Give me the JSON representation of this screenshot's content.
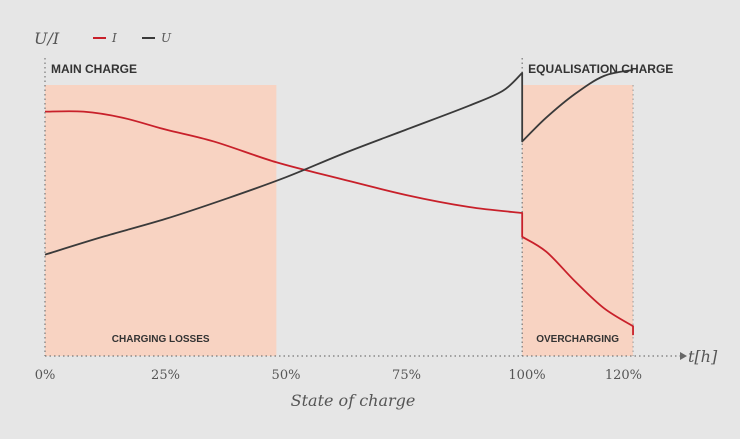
{
  "chart_data": {
    "type": "line",
    "y_axis_label": "U/I",
    "x_axis_unit_label": "t[h]",
    "xlabel": "State of charge",
    "x_ticks": [
      {
        "value": 0,
        "label": "0%"
      },
      {
        "value": 25,
        "label": "25%"
      },
      {
        "value": 50,
        "label": "50%"
      },
      {
        "value": 75,
        "label": "75%"
      },
      {
        "value": 100,
        "label": "100%"
      },
      {
        "value": 120,
        "label": "120%"
      }
    ],
    "xlim": [
      0,
      130
    ],
    "ylim": [
      0,
      1
    ],
    "grid": false,
    "legend": {
      "placement": "top-left",
      "entries": [
        {
          "name": "I",
          "color": "#c8202a"
        },
        {
          "name": "U",
          "color": "#3a3a3a"
        }
      ]
    },
    "series": [
      {
        "name": "I",
        "color": "#c8202a",
        "points": [
          [
            0,
            0.82
          ],
          [
            8,
            0.82
          ],
          [
            16,
            0.8
          ],
          [
            25,
            0.76
          ],
          [
            35,
            0.72
          ],
          [
            48,
            0.65
          ],
          [
            60,
            0.6
          ],
          [
            75,
            0.54
          ],
          [
            88,
            0.5
          ],
          [
            99,
            0.48
          ],
          [
            99,
            0.4
          ],
          [
            104,
            0.35
          ],
          [
            110,
            0.25
          ],
          [
            116,
            0.16
          ],
          [
            122,
            0.1
          ],
          [
            122,
            0.07
          ]
        ]
      },
      {
        "name": "U",
        "color": "#3a3a3a",
        "points": [
          [
            0,
            0.34
          ],
          [
            12,
            0.4
          ],
          [
            25,
            0.46
          ],
          [
            38,
            0.53
          ],
          [
            50,
            0.6
          ],
          [
            62,
            0.68
          ],
          [
            75,
            0.76
          ],
          [
            88,
            0.84
          ],
          [
            95,
            0.89
          ],
          [
            99,
            0.95
          ],
          [
            99,
            0.72
          ],
          [
            104,
            0.8
          ],
          [
            110,
            0.88
          ],
          [
            116,
            0.94
          ],
          [
            122,
            0.96
          ]
        ]
      }
    ],
    "regions": [
      {
        "name": "charging-losses",
        "label": "CHARGING LOSSES",
        "x_start": 0,
        "x_end": 48,
        "color": "#f8d3c2"
      },
      {
        "name": "overcharging",
        "label": "OVERCHARGING",
        "x_start": 99,
        "x_end": 122,
        "color": "#f8d3c2"
      }
    ],
    "phase_labels": [
      {
        "name": "main-charge",
        "label": "MAIN CHARGE",
        "x_start": 0
      },
      {
        "name": "equalisation-charge",
        "label": "EQUALISATION CHARGE",
        "x_start": 99
      }
    ]
  }
}
